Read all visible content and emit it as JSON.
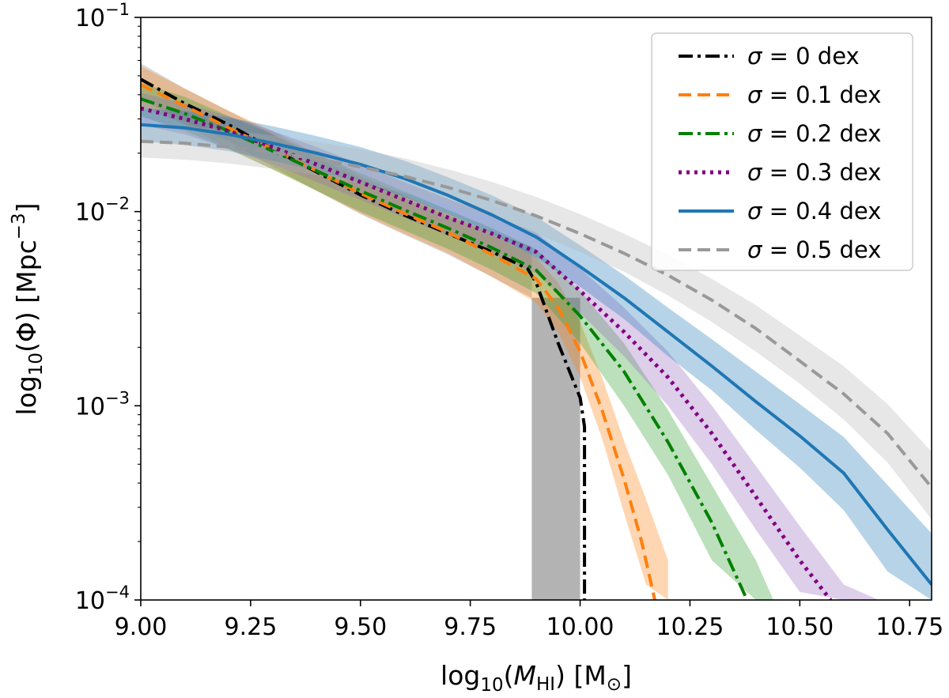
{
  "chart_data": {
    "type": "line",
    "xlabel": "log10(MHI) [M⊙]",
    "ylabel": "log10(Φ) [Mpc−3]",
    "xlim": [
      9.0,
      10.8
    ],
    "ylim": [
      0.0001,
      0.1
    ],
    "yscale": "log",
    "x_ticks": [
      9.0,
      9.25,
      9.5,
      9.75,
      10.0,
      10.25,
      10.5,
      10.75
    ],
    "x_tick_labels": [
      "9.00",
      "9.25",
      "9.50",
      "9.75",
      "10.00",
      "10.25",
      "10.50",
      "10.75"
    ],
    "y_ticks": [
      0.0001,
      0.001,
      0.01,
      0.1
    ],
    "y_tick_labels": [
      {
        "base": "10",
        "exp": "−4"
      },
      {
        "base": "10",
        "exp": "−3"
      },
      {
        "base": "10",
        "exp": "−2"
      },
      {
        "base": "10",
        "exp": "−1"
      }
    ],
    "legend_position": "top-right",
    "series": [
      {
        "name": "σ = 0 dex",
        "label_sigma": "σ",
        "label_rest": " = 0 dex",
        "color": "#000000",
        "style": "dashdot",
        "x": [
          9.0,
          9.1,
          9.2,
          9.3,
          9.4,
          9.5,
          9.6,
          9.7,
          9.8,
          9.88,
          9.9,
          9.95,
          10.0,
          10.01,
          10.01
        ],
        "y": [
          0.048,
          0.036,
          0.028,
          0.021,
          0.016,
          0.0122,
          0.0096,
          0.0077,
          0.0062,
          0.0051,
          0.0043,
          0.0021,
          0.0011,
          0.00078,
          0.0001
        ],
        "band_x": [
          9.0,
          9.1,
          9.2,
          9.3,
          9.4,
          9.5,
          9.6,
          9.7,
          9.8,
          9.89
        ],
        "band_low": [
          0.038,
          0.029,
          0.023,
          0.017,
          0.0128,
          0.0097,
          0.0076,
          0.006,
          0.0046,
          0.0036
        ],
        "band_high": [
          0.058,
          0.043,
          0.033,
          0.025,
          0.019,
          0.0148,
          0.0117,
          0.0094,
          0.0078,
          0.0066
        ],
        "band_color": "#808080",
        "rect_band": {
          "x0": 9.89,
          "x1": 10.0,
          "y0": 0.0001,
          "y1": 0.0036
        }
      },
      {
        "name": "σ = 0.1 dex",
        "label_sigma": "σ",
        "label_rest": " = 0.1 dex",
        "color": "#ff7f0e",
        "style": "dashed",
        "x": [
          9.0,
          9.1,
          9.2,
          9.3,
          9.4,
          9.5,
          9.6,
          9.7,
          9.8,
          9.9,
          9.95,
          10.0,
          10.05,
          10.1,
          10.14,
          10.17
        ],
        "y": [
          0.045,
          0.035,
          0.027,
          0.021,
          0.0162,
          0.0124,
          0.0098,
          0.0078,
          0.006,
          0.0045,
          0.0032,
          0.0019,
          0.00095,
          0.00042,
          0.0002,
          0.0001
        ],
        "band_x": [
          9.0,
          9.1,
          9.2,
          9.3,
          9.4,
          9.5,
          9.6,
          9.7,
          9.8,
          9.9,
          9.95,
          10.0,
          10.05,
          10.1,
          10.15,
          10.2
        ],
        "band_low": [
          0.035,
          0.028,
          0.021,
          0.0165,
          0.0128,
          0.0098,
          0.0077,
          0.0061,
          0.0046,
          0.0034,
          0.0024,
          0.0014,
          0.00068,
          0.00028,
          0.00012,
          0.0001
        ],
        "band_high": [
          0.056,
          0.043,
          0.033,
          0.026,
          0.02,
          0.0153,
          0.0121,
          0.0097,
          0.0076,
          0.0058,
          0.0043,
          0.0027,
          0.0014,
          0.00066,
          0.00033,
          0.00016
        ],
        "band_color": "#ff7f0e"
      },
      {
        "name": "σ = 0.2 dex",
        "label_sigma": "σ",
        "label_rest": " = 0.2 dex",
        "color": "#008000",
        "style": "dashdot",
        "x": [
          9.0,
          9.1,
          9.2,
          9.3,
          9.4,
          9.5,
          9.6,
          9.7,
          9.8,
          9.9,
          10.0,
          10.1,
          10.2,
          10.3,
          10.38
        ],
        "y": [
          0.038,
          0.032,
          0.026,
          0.0205,
          0.0162,
          0.0128,
          0.0102,
          0.0082,
          0.0065,
          0.005,
          0.0029,
          0.0015,
          0.00065,
          0.00025,
          0.0001
        ],
        "band_x": [
          9.0,
          9.1,
          9.2,
          9.3,
          9.4,
          9.5,
          9.6,
          9.7,
          9.8,
          9.9,
          10.0,
          10.1,
          10.2,
          10.3,
          10.4,
          10.44
        ],
        "band_low": [
          0.031,
          0.026,
          0.021,
          0.0165,
          0.0128,
          0.01,
          0.008,
          0.0064,
          0.005,
          0.0038,
          0.0021,
          0.001,
          0.00044,
          0.00016,
          0.0001,
          0.0001
        ],
        "band_high": [
          0.046,
          0.039,
          0.031,
          0.025,
          0.0198,
          0.0158,
          0.0127,
          0.0102,
          0.0082,
          0.0064,
          0.0039,
          0.0021,
          0.00095,
          0.00039,
          0.00016,
          0.0001
        ],
        "band_color": "#2ca02c"
      },
      {
        "name": "σ = 0.3 dex",
        "label_sigma": "σ",
        "label_rest": " = 0.3 dex",
        "color": "#800080",
        "style": "dotted",
        "x": [
          9.0,
          9.1,
          9.2,
          9.3,
          9.4,
          9.5,
          9.6,
          9.7,
          9.8,
          9.9,
          10.0,
          10.1,
          10.2,
          10.3,
          10.4,
          10.5,
          10.57
        ],
        "y": [
          0.034,
          0.03,
          0.026,
          0.0215,
          0.0175,
          0.0142,
          0.0115,
          0.0093,
          0.0077,
          0.0062,
          0.0039,
          0.0024,
          0.0014,
          0.00072,
          0.00034,
          0.00016,
          0.0001
        ],
        "band_x": [
          9.0,
          9.1,
          9.2,
          9.3,
          9.4,
          9.5,
          9.6,
          9.7,
          9.8,
          9.9,
          10.0,
          10.1,
          10.2,
          10.3,
          10.4,
          10.5,
          10.6,
          10.68
        ],
        "band_low": [
          0.028,
          0.025,
          0.021,
          0.0175,
          0.0142,
          0.0115,
          0.0093,
          0.0075,
          0.0061,
          0.0048,
          0.003,
          0.0018,
          0.001,
          0.0005,
          0.00023,
          0.00011,
          0.0001,
          0.0001
        ],
        "band_high": [
          0.041,
          0.036,
          0.031,
          0.026,
          0.0215,
          0.0175,
          0.0142,
          0.0116,
          0.0096,
          0.0078,
          0.0051,
          0.0032,
          0.0019,
          0.001,
          0.00049,
          0.00024,
          0.00012,
          0.0001
        ],
        "band_color": "#9467bd"
      },
      {
        "name": "σ = 0.4 dex",
        "label_sigma": "σ",
        "label_rest": " = 0.4 dex",
        "color": "#1f77b4",
        "style": "solid",
        "x": [
          9.0,
          9.1,
          9.2,
          9.3,
          9.4,
          9.5,
          9.6,
          9.7,
          9.8,
          9.9,
          10.0,
          10.1,
          10.2,
          10.3,
          10.4,
          10.5,
          10.6,
          10.7,
          10.8
        ],
        "y": [
          0.028,
          0.027,
          0.025,
          0.0225,
          0.02,
          0.0175,
          0.0148,
          0.0121,
          0.0096,
          0.0074,
          0.0052,
          0.0036,
          0.0024,
          0.0016,
          0.00105,
          0.0007,
          0.00045,
          0.00023,
          0.00012
        ],
        "band_x": [
          9.0,
          9.1,
          9.2,
          9.3,
          9.4,
          9.5,
          9.6,
          9.7,
          9.8,
          9.9,
          10.0,
          10.1,
          10.2,
          10.3,
          10.4,
          10.5,
          10.6,
          10.7,
          10.8
        ],
        "band_low": [
          0.023,
          0.022,
          0.0205,
          0.0183,
          0.0162,
          0.0141,
          0.0119,
          0.0097,
          0.0077,
          0.0058,
          0.0041,
          0.0028,
          0.0018,
          0.0012,
          0.00075,
          0.00048,
          0.00029,
          0.00014,
          0.0001
        ],
        "band_high": [
          0.034,
          0.033,
          0.0305,
          0.0275,
          0.0245,
          0.0215,
          0.0183,
          0.015,
          0.0121,
          0.0094,
          0.0067,
          0.0047,
          0.0032,
          0.0022,
          0.0015,
          0.00102,
          0.00069,
          0.00039,
          0.00022
        ],
        "band_color": "#1f77b4"
      },
      {
        "name": "σ = 0.5 dex",
        "label_sigma": "σ",
        "label_rest": " = 0.5 dex",
        "color": "#999999",
        "style": "dashed",
        "x": [
          9.0,
          9.1,
          9.2,
          9.3,
          9.4,
          9.5,
          9.6,
          9.7,
          9.8,
          9.9,
          10.0,
          10.1,
          10.2,
          10.3,
          10.4,
          10.5,
          10.6,
          10.7,
          10.8
        ],
        "y": [
          0.023,
          0.0225,
          0.0215,
          0.0202,
          0.0187,
          0.017,
          0.0152,
          0.0133,
          0.0114,
          0.0095,
          0.0077,
          0.0061,
          0.0047,
          0.0035,
          0.0025,
          0.0017,
          0.00115,
          0.00072,
          0.00038
        ],
        "band_x": [
          9.0,
          9.1,
          9.2,
          9.3,
          9.4,
          9.5,
          9.6,
          9.7,
          9.8,
          9.9,
          10.0,
          10.1,
          10.2,
          10.3,
          10.4,
          10.5,
          10.6,
          10.7,
          10.8
        ],
        "band_low": [
          0.019,
          0.0185,
          0.0177,
          0.0166,
          0.0154,
          0.014,
          0.0125,
          0.0109,
          0.0093,
          0.0077,
          0.0062,
          0.0049,
          0.0037,
          0.0027,
          0.0019,
          0.0013,
          0.00085,
          0.00051,
          0.00026
        ],
        "band_high": [
          0.028,
          0.0275,
          0.0263,
          0.0247,
          0.0229,
          0.0209,
          0.0188,
          0.0165,
          0.0142,
          0.0119,
          0.0097,
          0.0077,
          0.006,
          0.0045,
          0.0033,
          0.0023,
          0.0016,
          0.00102,
          0.00058
        ],
        "band_color": "#b3b3b3"
      }
    ]
  }
}
